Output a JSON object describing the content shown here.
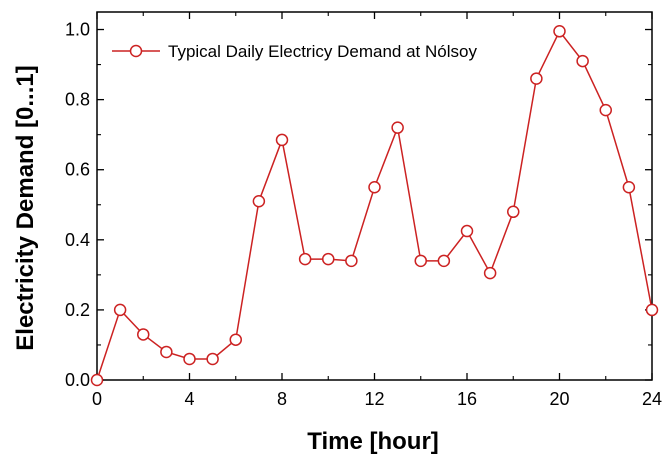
{
  "chart_data": {
    "type": "line",
    "title": "",
    "xlabel": "Time  [hour]",
    "ylabel": "Electricity Demand [0...1]",
    "xlim": [
      0,
      24
    ],
    "ylim": [
      0,
      1.05
    ],
    "x_ticks": [
      0,
      4,
      8,
      12,
      16,
      20,
      24
    ],
    "x_tick_labels": [
      "0",
      "4",
      "8",
      "12",
      "16",
      "20",
      "24"
    ],
    "y_ticks": [
      0,
      0.2,
      0.4,
      0.6,
      0.8,
      1.0
    ],
    "y_tick_labels": [
      "0.0",
      "0.2",
      "0.4",
      "0.6",
      "0.8",
      "1.0"
    ],
    "grid": false,
    "legend_position": "top-left",
    "series": [
      {
        "name": "Typical Daily Electricy Demand at Nólsoy",
        "color": "#cc2222",
        "marker": "open-circle",
        "x": [
          0,
          1,
          2,
          3,
          4,
          5,
          6,
          7,
          8,
          9,
          10,
          11,
          12,
          13,
          14,
          15,
          16,
          17,
          18,
          19,
          20,
          21,
          22,
          23,
          24
        ],
        "y": [
          0.0,
          0.2,
          0.13,
          0.08,
          0.06,
          0.06,
          0.115,
          0.51,
          0.685,
          0.345,
          0.345,
          0.34,
          0.55,
          0.72,
          0.34,
          0.34,
          0.425,
          0.305,
          0.48,
          0.86,
          0.995,
          0.91,
          0.77,
          0.55,
          0.2
        ]
      }
    ]
  }
}
